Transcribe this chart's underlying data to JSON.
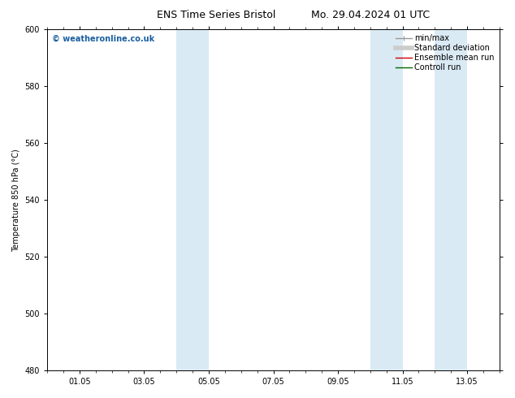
{
  "title_left": "ENS Time Series Bristol",
  "title_right": "Mo. 29.04.2024 01 UTC",
  "ylabel": "Temperature 850 hPa (°C)",
  "xlim_min": 0.0,
  "xlim_max": 14.0,
  "ylim": [
    480,
    600
  ],
  "yticks": [
    480,
    500,
    520,
    540,
    560,
    580,
    600
  ],
  "xtick_positions": [
    1,
    3,
    5,
    7,
    9,
    11,
    13
  ],
  "xtick_labels": [
    "01.05",
    "03.05",
    "05.05",
    "07.05",
    "09.05",
    "11.05",
    "13.05"
  ],
  "minor_xtick_positions": [
    0,
    0.5,
    1,
    1.5,
    2,
    2.5,
    3,
    3.5,
    4,
    4.5,
    5,
    5.5,
    6,
    6.5,
    7,
    7.5,
    8,
    8.5,
    9,
    9.5,
    10,
    10.5,
    11,
    11.5,
    12,
    12.5,
    13,
    13.5,
    14
  ],
  "shaded_bands": [
    {
      "xmin": 4.0,
      "xmax": 5.0,
      "color": "#daeaf5"
    },
    {
      "xmin": 10.0,
      "xmax": 11.0,
      "color": "#daeaf5"
    },
    {
      "xmin": 12.0,
      "xmax": 13.0,
      "color": "#daeaf5"
    }
  ],
  "watermark_text": "© weatheronline.co.uk",
  "watermark_color": "#1a5fa0",
  "legend_entries": [
    {
      "label": "min/max",
      "color": "#999999",
      "lw": 1.0
    },
    {
      "label": "Standard deviation",
      "color": "#cccccc",
      "lw": 4
    },
    {
      "label": "Ensemble mean run",
      "color": "#cc0000",
      "lw": 1.0
    },
    {
      "label": "Controll run",
      "color": "#006600",
      "lw": 1.0
    }
  ],
  "background_color": "#ffffff",
  "spine_color": "#000000",
  "title_fontsize": 9,
  "tick_fontsize": 7,
  "label_fontsize": 7,
  "legend_fontsize": 7,
  "watermark_fontsize": 7
}
